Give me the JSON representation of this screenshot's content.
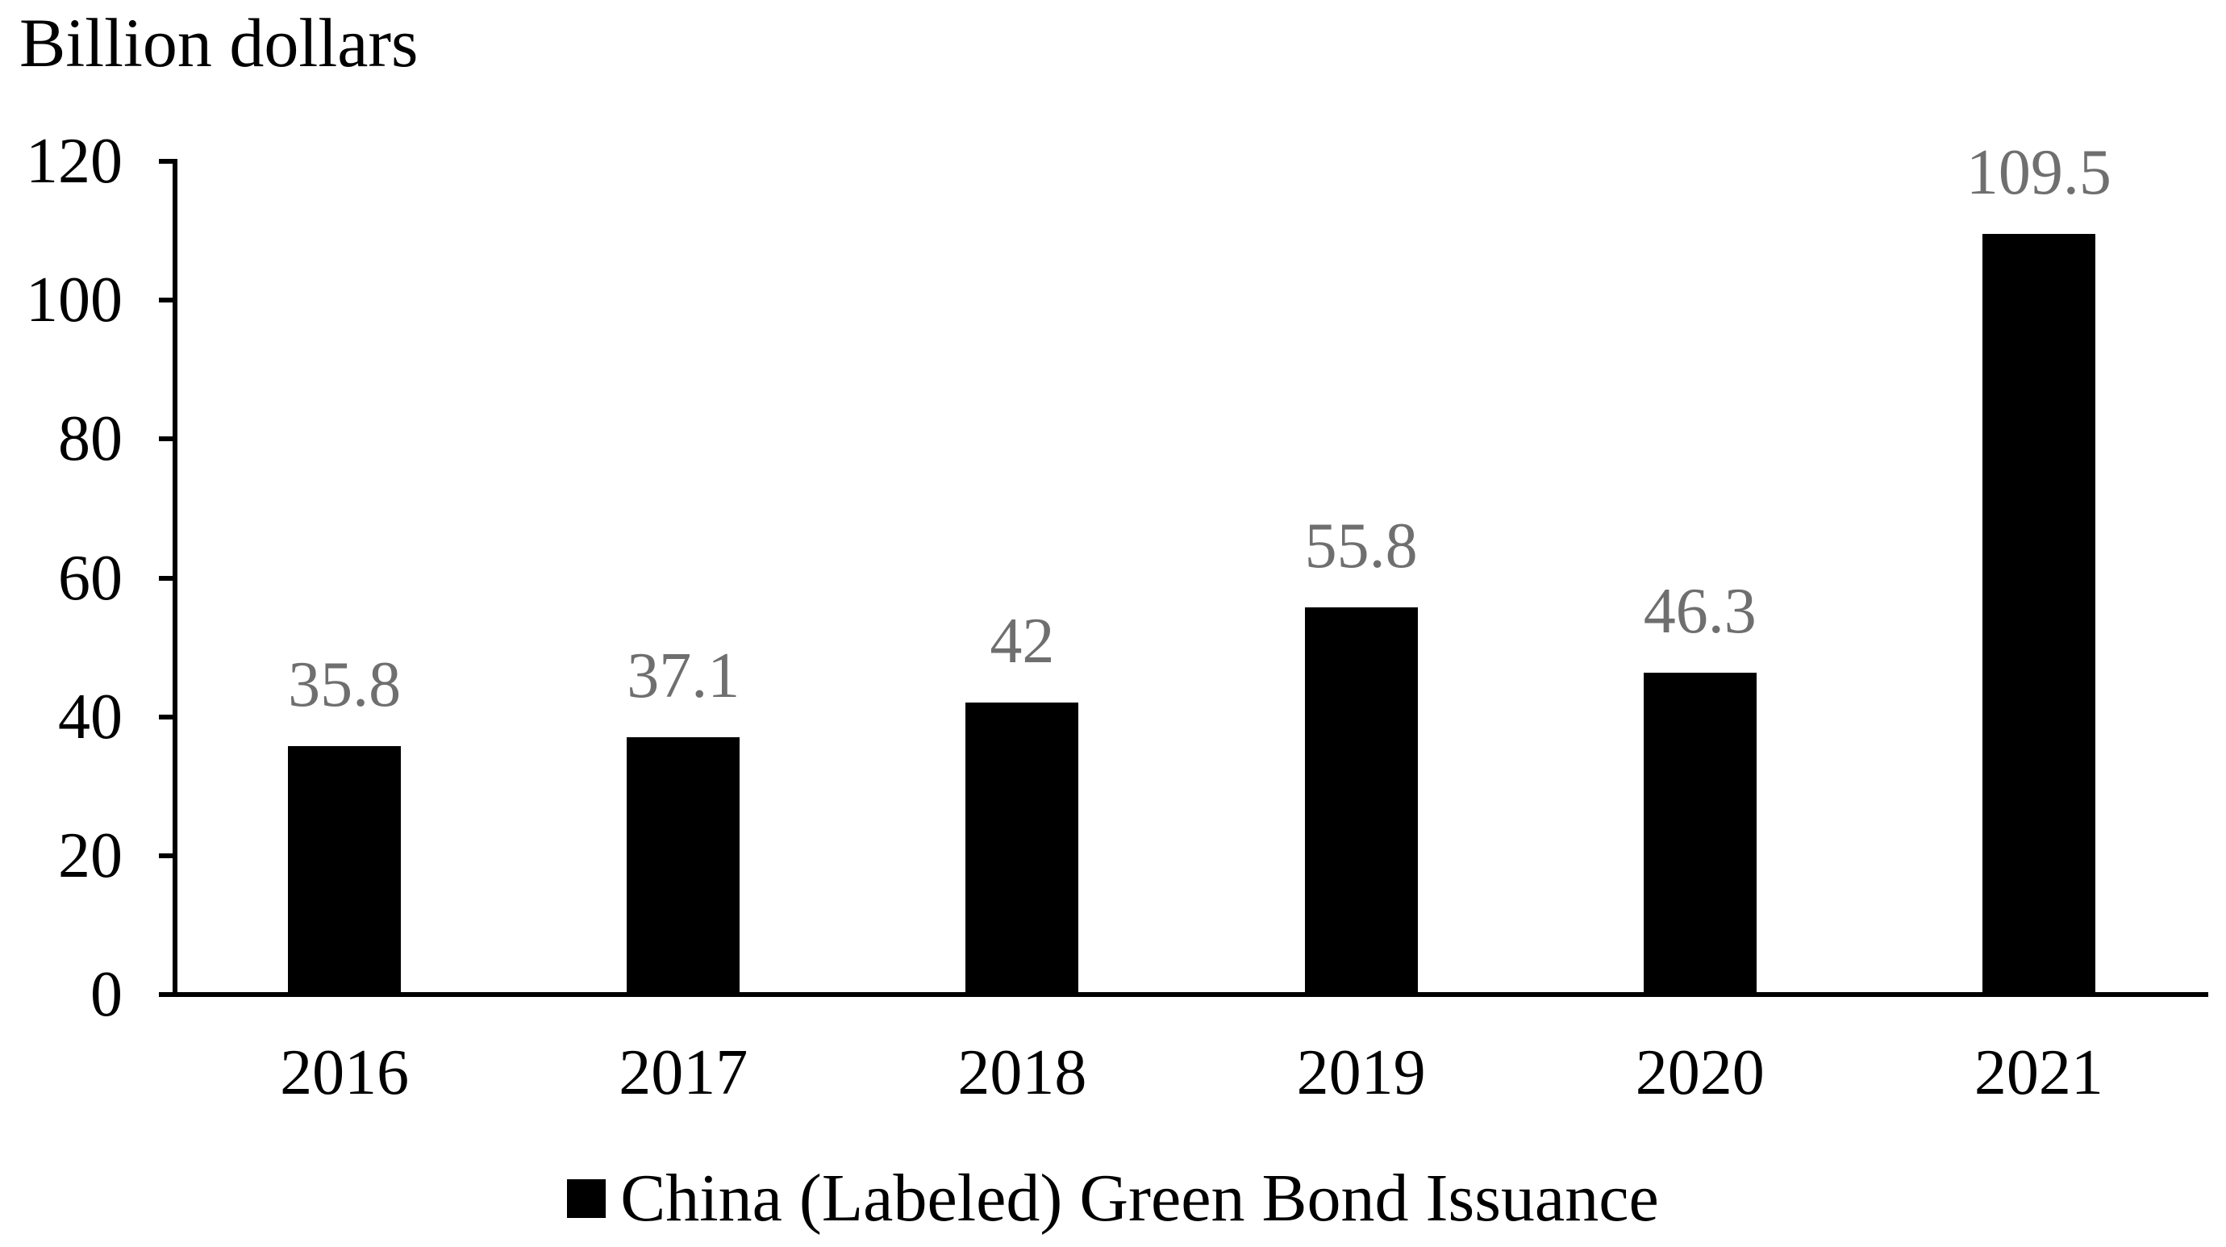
{
  "chart_data": {
    "type": "bar",
    "title": "",
    "ylabel": "Billion dollars",
    "xlabel": "",
    "categories": [
      "2016",
      "2017",
      "2018",
      "2019",
      "2020",
      "2021"
    ],
    "series": [
      {
        "name": "China (Labeled) Green Bond Issuance",
        "values": [
          35.8,
          37.1,
          42,
          55.8,
          46.3,
          109.5
        ]
      }
    ],
    "data_labels": [
      "35.8",
      "37.1",
      "42",
      "55.8",
      "46.3",
      "109.5"
    ],
    "ylim": [
      0,
      120
    ],
    "yticks": [
      0,
      20,
      40,
      60,
      80,
      100,
      120
    ],
    "grid": false,
    "legend_position": "bottom",
    "colors": {
      "bar": "#000000",
      "data_label": "#6f6f6f",
      "axis": "#000000",
      "text": "#000000",
      "background": "#ffffff"
    }
  }
}
